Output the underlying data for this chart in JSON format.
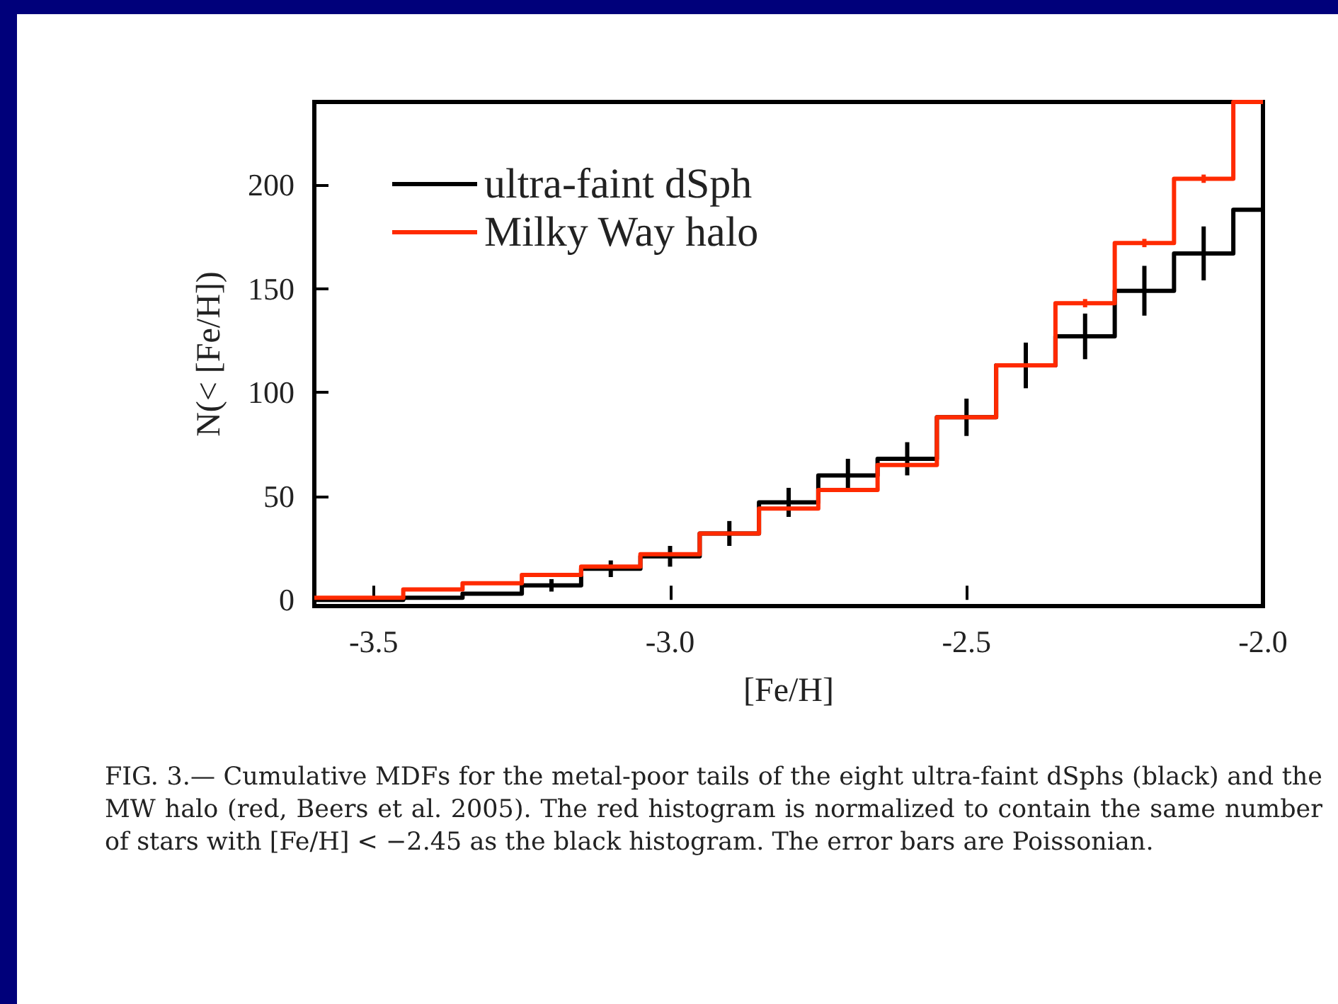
{
  "chart_data": {
    "type": "step",
    "xlabel": "[Fe/H]",
    "ylabel": "N(< [Fe/H])",
    "x": [
      -3.6,
      -3.5,
      -3.4,
      -3.3,
      -3.2,
      -3.1,
      -3.0,
      -2.9,
      -2.8,
      -2.7,
      -2.6,
      -2.5,
      -2.4,
      -2.3,
      -2.2,
      -2.1,
      -2.0
    ],
    "series": [
      {
        "name": "ultra-faint dSph",
        "color": "#000000",
        "values": [
          0,
          0,
          1,
          3,
          7,
          15,
          21,
          32,
          47,
          60,
          68,
          88,
          113,
          127,
          149,
          167,
          188
        ],
        "errors": [
          null,
          null,
          null,
          null,
          3,
          4,
          5,
          6,
          7,
          8,
          8,
          9,
          11,
          11,
          12,
          13,
          null
        ]
      },
      {
        "name": "Milky Way halo",
        "color": "#ff2a00",
        "values": [
          1,
          1,
          5,
          8,
          12,
          16,
          22,
          32,
          44,
          53,
          65,
          88,
          113,
          143,
          172,
          203,
          240
        ],
        "errors": [
          null,
          null,
          null,
          null,
          null,
          null,
          null,
          null,
          null,
          null,
          null,
          null,
          null,
          2,
          2,
          2,
          null
        ]
      }
    ],
    "xlim": [
      -3.6,
      -2.0
    ],
    "xticks": [
      {
        "value": -3.5,
        "label": "-3.5"
      },
      {
        "value": -3.0,
        "label": "-3.0"
      },
      {
        "value": -2.5,
        "label": "-2.5"
      },
      {
        "value": -2.0,
        "label": "-2.0"
      }
    ],
    "ylim": [
      -3,
      240
    ],
    "yticks": [
      0,
      50,
      100,
      150,
      200
    ],
    "legend": "top left",
    "grid": false,
    "marker": "none",
    "line_style": "solid",
    "annotations": [
      "FIG. 3.— Cumulative MDFs for the metal-poor tails of the eight ultra-faint dSphs (black) and the MW halo (red, Beers et al. 2005). The red histogram is normalized to contain the same number of stars with [Fe/H] < −2.45 as the black histogram. The error bars are Poissonian."
    ]
  }
}
